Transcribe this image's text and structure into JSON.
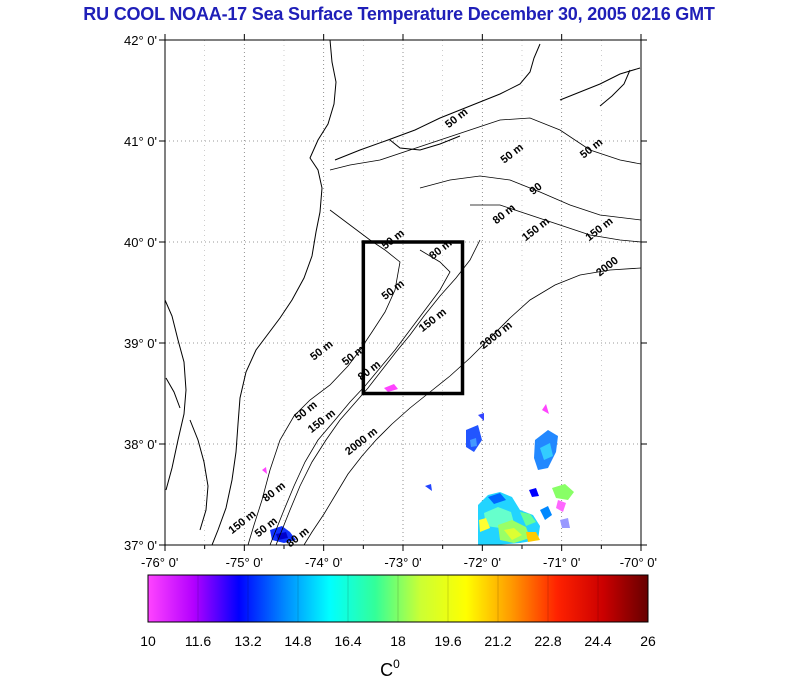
{
  "title": "RU COOL  NOAA-17 Sea Surface Temperature December 30, 2005 0216 GMT",
  "map": {
    "lat_range": [
      37,
      42
    ],
    "lon_range": [
      -76,
      -70
    ],
    "lat_ticks": [
      {
        "value": 42,
        "label": "42° 0'"
      },
      {
        "value": 41,
        "label": "41° 0'"
      },
      {
        "value": 40,
        "label": "40° 0'"
      },
      {
        "value": 39,
        "label": "39° 0'"
      },
      {
        "value": 38,
        "label": "38° 0'"
      },
      {
        "value": 37,
        "label": "37° 0'"
      }
    ],
    "lon_ticks": [
      {
        "value": -76,
        "label": "-76° 0'"
      },
      {
        "value": -75,
        "label": "-75° 0'"
      },
      {
        "value": -74,
        "label": "-74° 0'"
      },
      {
        "value": -73,
        "label": "-73° 0'"
      },
      {
        "value": -72,
        "label": "-72° 0'"
      },
      {
        "value": -71,
        "label": "-71° 0'"
      },
      {
        "value": -70,
        "label": "-70° 0'"
      }
    ],
    "grid": "dotted",
    "study_box": {
      "lon_min": -73.5,
      "lon_max": -72.25,
      "lat_min": 38.5,
      "lat_max": 40.0
    },
    "contour_labels": [
      {
        "text": "50 m",
        "lon": -72.3,
        "lat": 41.2
      },
      {
        "text": "50 m",
        "lon": -71.6,
        "lat": 40.85
      },
      {
        "text": "50 m",
        "lon": -70.6,
        "lat": 40.9
      },
      {
        "text": "90",
        "lon": -71.3,
        "lat": 40.5
      },
      {
        "text": "80 m",
        "lon": -71.7,
        "lat": 40.25
      },
      {
        "text": "150 m",
        "lon": -71.3,
        "lat": 40.1
      },
      {
        "text": "50 m",
        "lon": -73.1,
        "lat": 40.0
      },
      {
        "text": "80 m",
        "lon": -72.5,
        "lat": 39.9
      },
      {
        "text": "150 m",
        "lon": -70.5,
        "lat": 40.1
      },
      {
        "text": "2000",
        "lon": -70.4,
        "lat": 39.73
      },
      {
        "text": "50 m",
        "lon": -73.1,
        "lat": 39.5
      },
      {
        "text": "150 m",
        "lon": -72.6,
        "lat": 39.2
      },
      {
        "text": "2000 m",
        "lon": -71.8,
        "lat": 39.05
      },
      {
        "text": "50 m",
        "lon": -74.0,
        "lat": 38.9
      },
      {
        "text": "50 m",
        "lon": -73.6,
        "lat": 38.85
      },
      {
        "text": "80 m",
        "lon": -73.4,
        "lat": 38.7
      },
      {
        "text": "50 m",
        "lon": -74.2,
        "lat": 38.3
      },
      {
        "text": "150 m",
        "lon": -74.0,
        "lat": 38.2
      },
      {
        "text": "2000 m",
        "lon": -73.5,
        "lat": 38.0
      },
      {
        "text": "80 m",
        "lon": -74.6,
        "lat": 37.5
      },
      {
        "text": "150 m",
        "lon": -75.0,
        "lat": 37.2
      },
      {
        "text": "50 m",
        "lon": -74.7,
        "lat": 37.15
      },
      {
        "text": "80 m",
        "lon": -74.3,
        "lat": 37.05
      }
    ]
  },
  "colorbar": {
    "unit": "C",
    "unit_superscript": "0",
    "min": 10,
    "max": 26,
    "ticks": [
      "10",
      "11.6",
      "13.2",
      "14.8",
      "16.4",
      "18",
      "19.6",
      "21.2",
      "22.8",
      "24.4",
      "26"
    ],
    "stops": [
      "#ff44ff",
      "#b400ff",
      "#0000ff",
      "#0088ff",
      "#00ffff",
      "#33ff99",
      "#ccff33",
      "#ffff00",
      "#ff9900",
      "#ff2200",
      "#cc0000",
      "#660000"
    ]
  }
}
